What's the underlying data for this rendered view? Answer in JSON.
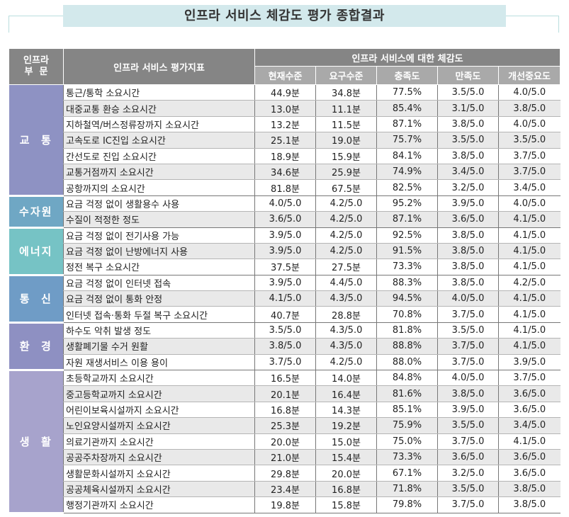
{
  "title": "인프라 서비스 체감도 평가 종합결과",
  "header": {
    "sector_line1": "인프라",
    "sector_line2": "부  문",
    "indicator": "인프라 서비스 평가지표",
    "group_label": "인프라 서비스에 대한 체감도",
    "columns": [
      "현재수준",
      "요구수준",
      "충족도",
      "만족도",
      "개선중요도"
    ]
  },
  "colors": {
    "transport": "#8e92c3",
    "water": "#6fa7c4",
    "energy": "#76c3c5",
    "telecom": "#6f9cc6",
    "environment": "#8e90c2",
    "living": "#a7a3cc",
    "header_dark": "#858585",
    "header_light": "#a9a9a9",
    "title_bg": "#d3e9ec"
  },
  "groups": [
    {
      "label": "교  통",
      "rows": [
        {
          "name": "통근/통학 소요시간",
          "values": [
            "44.9분",
            "34.8분",
            "77.5%",
            "3.5/5.0",
            "4.0/5.0"
          ]
        },
        {
          "name": "대중교통 환승 소요시간",
          "values": [
            "13.0분",
            "11.1분",
            "85.4%",
            "3.1/5.0",
            "3.8/5.0"
          ]
        },
        {
          "name": "지하철역/버스정류장까지 소요시간",
          "values": [
            "13.2분",
            "11.5분",
            "87.1%",
            "3.8/5.0",
            "4.0/5.0"
          ]
        },
        {
          "name": "고속도로 IC진입 소요시간",
          "values": [
            "25.1분",
            "19.0분",
            "75.7%",
            "3.5/5.0",
            "3.5/5.0"
          ]
        },
        {
          "name": "간선도로 진입 소요시간",
          "values": [
            "18.9분",
            "15.9분",
            "84.1%",
            "3.8/5.0",
            "3.7/5.0"
          ]
        },
        {
          "name": "교통거점까지 소요시간",
          "values": [
            "34.6분",
            "25.9분",
            "74.9%",
            "3.4/5.0",
            "3.7/5.0"
          ]
        },
        {
          "name": "공항까지의 소요시간",
          "values": [
            "81.8분",
            "67.5분",
            "82.5%",
            "3.2/5.0",
            "3.4/5.0"
          ]
        }
      ]
    },
    {
      "label": "수자원",
      "rows": [
        {
          "name": "요금 걱정 없이 생활용수 사용",
          "values": [
            "4.0/5.0",
            "4.2/5.0",
            "95.2%",
            "3.9/5.0",
            "4.0/5.0"
          ]
        },
        {
          "name": "수질이 적정한 정도",
          "values": [
            "3.6/5.0",
            "4.2/5.0",
            "87.1%",
            "3.6/5.0",
            "4.1/5.0"
          ]
        }
      ]
    },
    {
      "label": "에너지",
      "rows": [
        {
          "name": "요금 걱정 없이 전기사용 가능",
          "values": [
            "3.9/5.0",
            "4.2/5.0",
            "92.5%",
            "3.8/5.0",
            "4.1/5.0"
          ]
        },
        {
          "name": "요금 걱정 없이 난방에너지 사용",
          "values": [
            "3.9/5.0",
            "4.2/5.0",
            "91.5%",
            "3.8/5.0",
            "4.1/5.0"
          ]
        },
        {
          "name": "정전 복구 소요시간",
          "values": [
            "37.5분",
            "27.5분",
            "73.3%",
            "3.8/5.0",
            "4.1/5.0"
          ]
        }
      ]
    },
    {
      "label": "통  신",
      "rows": [
        {
          "name": "요금 걱정 없이 인터넷 접속",
          "values": [
            "3.9/5.0",
            "4.4/5.0",
            "88.3%",
            "3.8/5.0",
            "4.2/5.0"
          ]
        },
        {
          "name": "요금 걱정 없이 통화 안정",
          "values": [
            "4.1/5.0",
            "4.3/5.0",
            "94.5%",
            "4.0/5.0",
            "4.1/5.0"
          ]
        },
        {
          "name": "인터넷 접속·통화 두절 복구 소요시간",
          "values": [
            "40.7분",
            "28.8분",
            "70.8%",
            "3.7/5.0",
            "4.1/5.0"
          ]
        }
      ]
    },
    {
      "label": "환  경",
      "rows": [
        {
          "name": "하수도 악취 발생 정도",
          "values": [
            "3.5/5.0",
            "4.3/5.0",
            "81.8%",
            "3.5/5.0",
            "4.1/5.0"
          ]
        },
        {
          "name": "생활폐기물 수거 원활",
          "values": [
            "3.8/5.0",
            "4.3/5.0",
            "88.8%",
            "3.7/5.0",
            "4.1/5.0"
          ]
        },
        {
          "name": "자원 재생서비스 이용 용이",
          "values": [
            "3.7/5.0",
            "4.2/5.0",
            "88.0%",
            "3.7/5.0",
            "3.9/5.0"
          ]
        }
      ]
    },
    {
      "label": "생  활",
      "rows": [
        {
          "name": "초등학교까지 소요시간",
          "values": [
            "16.5분",
            "14.0분",
            "84.8%",
            "4.0/5.0",
            "3.7/5.0"
          ]
        },
        {
          "name": "중고등학교까지 소요시간",
          "values": [
            "20.1분",
            "16.4분",
            "81.6%",
            "3.8/5.0",
            "3.6/5.0"
          ]
        },
        {
          "name": "어린이보육시설까지 소요시간",
          "values": [
            "16.8분",
            "14.3분",
            "85.1%",
            "3.9/5.0",
            "3.6/5.0"
          ]
        },
        {
          "name": "노인요양시설까지 소요시간",
          "values": [
            "25.3분",
            "19.2분",
            "75.9%",
            "3.5/5.0",
            "3.4/5.0"
          ]
        },
        {
          "name": "의료기관까지 소요시간",
          "values": [
            "20.0분",
            "15.0분",
            "75.0%",
            "3.7/5.0",
            "4.1/5.0"
          ]
        },
        {
          "name": "공공주차장까지 소요시간",
          "values": [
            "21.0분",
            "15.4분",
            "73.3%",
            "3.6/5.0",
            "3.6/5.0"
          ]
        },
        {
          "name": "생활문화시설까지 소요시간",
          "values": [
            "29.8분",
            "20.0분",
            "67.1%",
            "3.2/5.0",
            "3.6/5.0"
          ]
        },
        {
          "name": "공공체육시설까지 소요시간",
          "values": [
            "23.4분",
            "16.8분",
            "71.8%",
            "3.5/5.0",
            "3.8/5.0"
          ]
        },
        {
          "name": "행정기관까지 소요시간",
          "values": [
            "19.8분",
            "15.8분",
            "79.8%",
            "3.7/5.0",
            "3.8/5.0"
          ]
        }
      ]
    }
  ]
}
